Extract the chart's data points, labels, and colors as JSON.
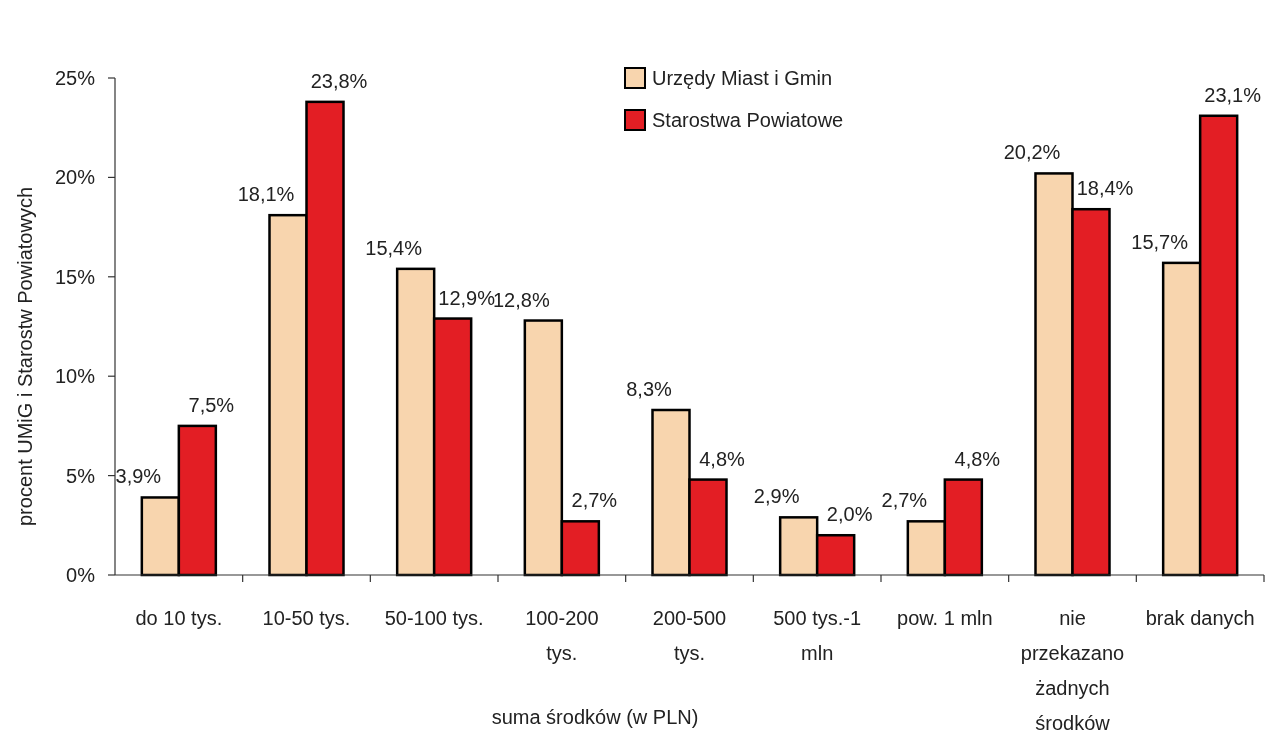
{
  "chart_data": {
    "type": "bar",
    "xlabel": "suma środków (w PLN)",
    "ylabel": "procent UMiG i Starostw Powiatowych",
    "categories": [
      "do 10 tys.",
      "10-50 tys.",
      "50-100 tys.",
      "100-200 tys.",
      "200-500 tys.",
      "500 tys.-1 mln",
      "pow. 1 mln",
      "nie przekazano żadnych środków",
      "brak danych"
    ],
    "series": [
      {
        "name": "Urzędy Miast i Gmin",
        "color": "#f8d5ae",
        "values": [
          3.9,
          18.1,
          15.4,
          12.8,
          8.3,
          2.9,
          2.7,
          20.2,
          15.7
        ],
        "value_labels": [
          "3,9%",
          "18,1%",
          "15,4%",
          "12,8%",
          "8,3%",
          "2,9%",
          "2,7%",
          "20,2%",
          "15,7%"
        ]
      },
      {
        "name": "Starostwa Powiatowe",
        "color": "#e31e24",
        "values": [
          7.5,
          23.8,
          12.9,
          2.7,
          4.8,
          2.0,
          4.8,
          18.4,
          23.1
        ],
        "value_labels": [
          "7,5%",
          "23,8%",
          "12,9%",
          "2,7%",
          "4,8%",
          "2,0%",
          "4,8%",
          "18,4%",
          "23,1%"
        ]
      }
    ],
    "ylim": [
      0,
      25
    ],
    "yticks": [
      {
        "value": 0,
        "label": "0%"
      },
      {
        "value": 5,
        "label": "5%"
      },
      {
        "value": 10,
        "label": "10%"
      },
      {
        "value": 15,
        "label": "15%"
      },
      {
        "value": 20,
        "label": "20%"
      },
      {
        "value": 25,
        "label": "25%"
      }
    ],
    "grid": false,
    "legend": "top"
  }
}
